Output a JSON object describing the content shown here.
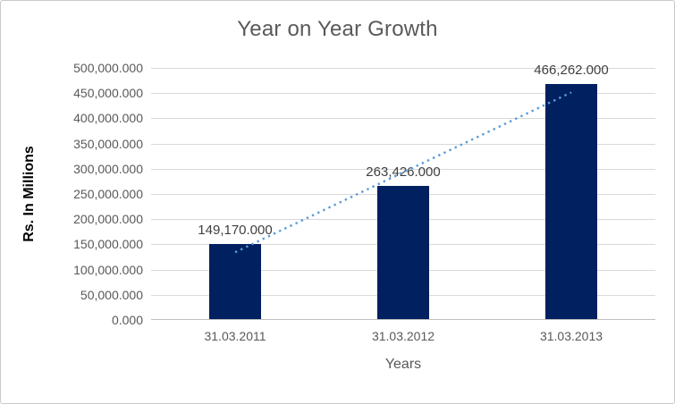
{
  "chart_data": {
    "type": "bar",
    "title": "Year on Year Growth",
    "xlabel": "Years",
    "ylabel": "Rs. In Millions",
    "categories": [
      "31.03.2011",
      "31.03.2012",
      "31.03.2013"
    ],
    "values": [
      149170,
      263426,
      466262
    ],
    "data_labels": [
      "149,170.000",
      "263,426.000",
      "466,262.000"
    ],
    "ylim": [
      0,
      500000
    ],
    "ytick_interval": 50000,
    "ytick_labels": [
      "0.000",
      "50,000.000",
      "100,000.000",
      "150,000.000",
      "200,000.000",
      "250,000.000",
      "300,000.000",
      "350,000.000",
      "400,000.000",
      "450,000.000",
      "500,000.000"
    ],
    "grid": true,
    "legend": "none",
    "trendline": {
      "type": "linear",
      "style": "dotted"
    },
    "colors": {
      "bar": "#002060",
      "trendline": "#5B9BD5",
      "gridline": "#D9D9D9",
      "axis_line": "#BFBFBF",
      "title_text": "#595959",
      "tick_text": "#595959",
      "data_label_text": "#404040",
      "x_axis_title_text": "#595959",
      "y_axis_title_text": "#000000",
      "chart_border": "#C9C9C9"
    }
  }
}
